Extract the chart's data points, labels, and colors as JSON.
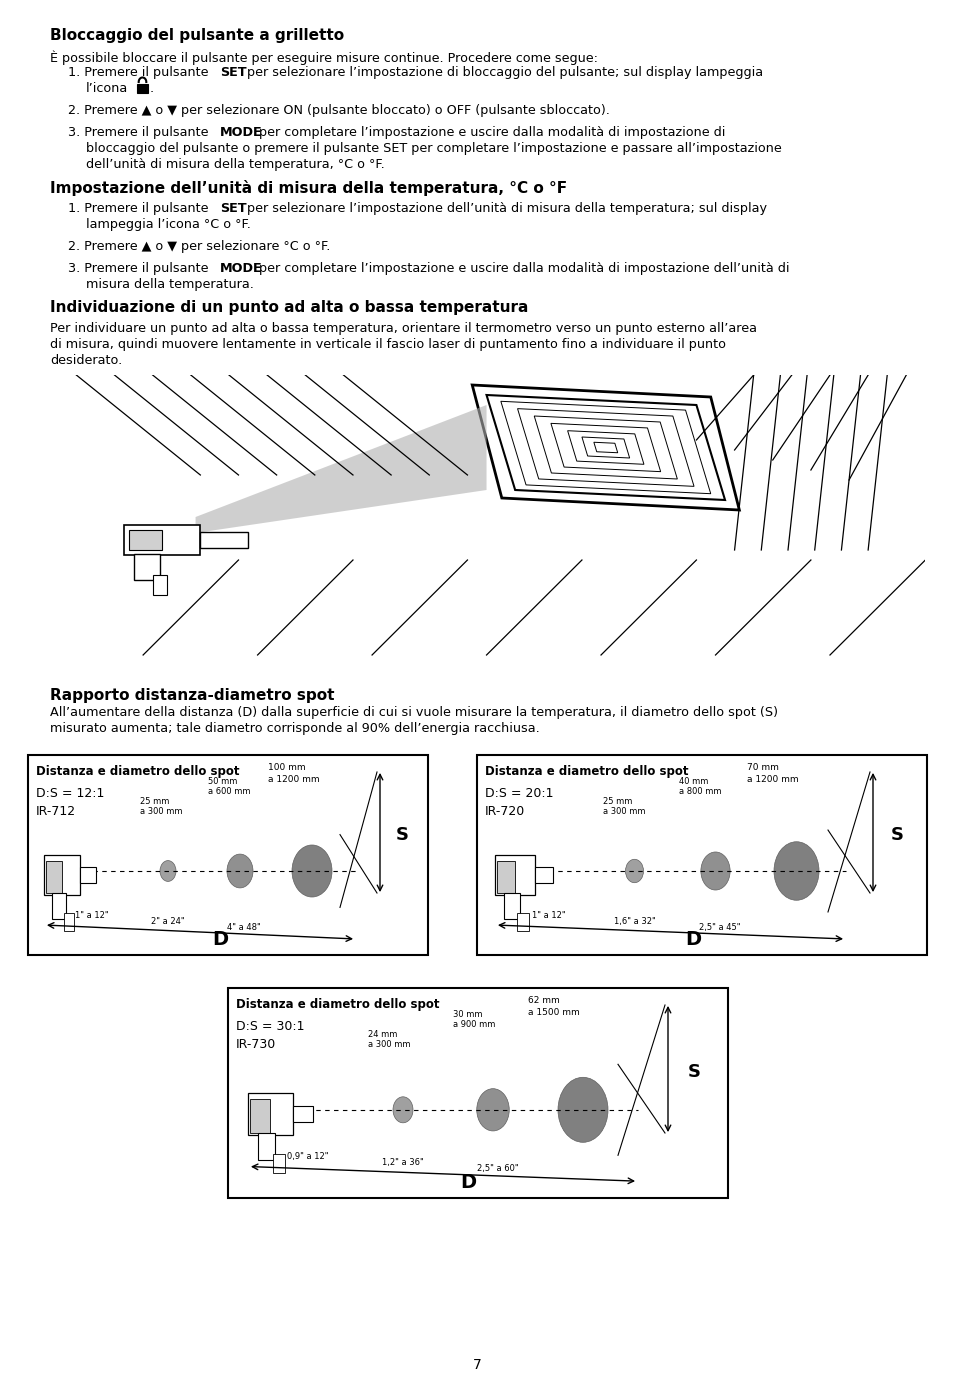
{
  "page_bg": "#ffffff",
  "title1": "Bloccaggio del pulsante a grilletto",
  "title2": "Impostazione dell’unità di misura della temperatura, °C o °F",
  "title3": "Individuazione di un punto ad alta o bassa temperatura",
  "title4": "Rapporto distanza-diametro spot",
  "box1_title": "Distanza e diametro dello spot",
  "box1_model": "D:S = 12:1",
  "box1_ir": "IR-712",
  "box1_s1": "25 mm",
  "box1_s1d": "a 300 mm",
  "box1_s2": "50 mm",
  "box1_s2d": "a 600 mm",
  "box1_s3": "100 mm",
  "box1_s3d": "a 1200 mm",
  "box1_d1": "1\" a 12\"",
  "box1_d2": "2\" a 24\"",
  "box1_d3": "4\" a 48\"",
  "box2_title": "Distanza e diametro dello spot",
  "box2_model": "D:S = 20:1",
  "box2_ir": "IR-720",
  "box2_s1": "25 mm",
  "box2_s1d": "a 300 mm",
  "box2_s2": "40 mm",
  "box2_s2d": "a 800 mm",
  "box2_s3": "70 mm",
  "box2_s3d": "a 1200 mm",
  "box2_d1": "1\" a 12\"",
  "box2_d2": "1,6\" a 32\"",
  "box2_d3": "2,5\" a 45\"",
  "box3_title": "Distanza e diametro dello spot",
  "box3_model": "D:S = 30:1",
  "box3_ir": "IR-730",
  "box3_s1": "24 mm",
  "box3_s1d": "a 300 mm",
  "box3_s2": "30 mm",
  "box3_s2d": "a 900 mm",
  "box3_s3": "62 mm",
  "box3_s3d": "a 1500 mm",
  "box3_d1": "0,9\" a 12\"",
  "box3_d2": "1,2\" a 36\"",
  "box3_d3": "2,5\" a 60\"",
  "page_number": "7"
}
